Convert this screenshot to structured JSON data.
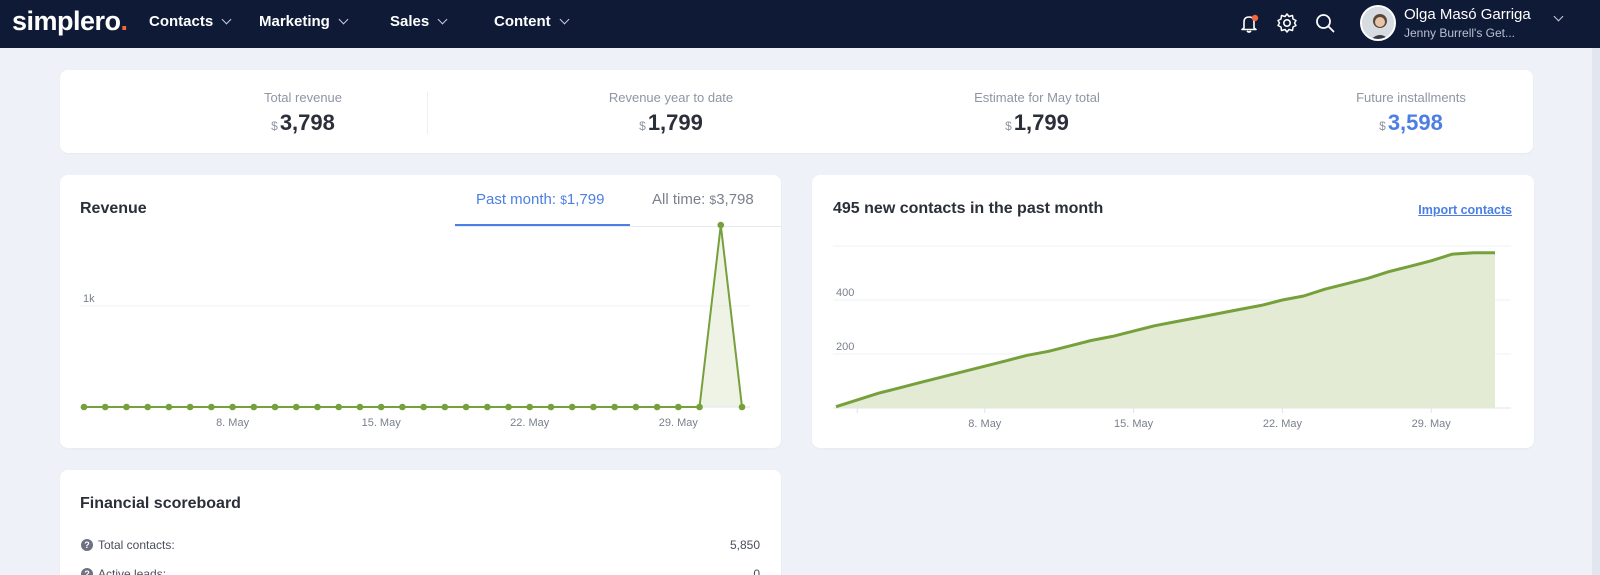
{
  "app": {
    "logo": "simplero",
    "logo_dot": "."
  },
  "nav": {
    "items": [
      {
        "label": "Contacts"
      },
      {
        "label": "Marketing"
      },
      {
        "label": "Sales"
      },
      {
        "label": "Content"
      }
    ]
  },
  "user": {
    "name": "Olga Masó Garriga",
    "account": "Jenny Burrell's Get..."
  },
  "icons": {
    "notifications": "bell-icon",
    "settings": "gear-icon",
    "search": "search-icon",
    "notification_badge_color": "#f4663b"
  },
  "stats": [
    {
      "label": "Total revenue",
      "currency": "$",
      "value": "3,798"
    },
    {
      "label": "Revenue year to date",
      "currency": "$",
      "value": "1,799"
    },
    {
      "label": "Estimate for May total",
      "currency": "$",
      "value": "1,799"
    },
    {
      "label": "Future installments",
      "currency": "$",
      "value": "3,598"
    }
  ],
  "revenue_card": {
    "title": "Revenue",
    "tab_past_prefix": "Past month: ",
    "tab_past_currency": "$",
    "tab_past_value": "1,799",
    "tab_all_prefix": "All time: ",
    "tab_all_currency": "$",
    "tab_all_value": "3,798",
    "active_tab": "past-month"
  },
  "contacts_card": {
    "title": "495 new contacts in the past month",
    "import_link": "Import contacts"
  },
  "scoreboard": {
    "title": "Financial scoreboard",
    "rows": [
      {
        "label": "Total contacts:",
        "value": "5,850"
      },
      {
        "label": "Active leads:",
        "value": "0"
      }
    ]
  },
  "colors": {
    "chart_green": "#76a03c",
    "chart_fill": "#e4ebd4",
    "accent_blue": "#4c7fe3",
    "nav_bg": "#0e1a36"
  },
  "chart_data": [
    {
      "type": "line",
      "x_tick_labels": [
        "8. May",
        "15. May",
        "22. May",
        "29. May"
      ],
      "y_tick_labels": [
        "1k"
      ],
      "ylim": [
        0,
        1800
      ],
      "series": [
        {
          "values": [
            0,
            0,
            0,
            0,
            0,
            0,
            0,
            0,
            0,
            0,
            0,
            0,
            0,
            0,
            0,
            0,
            0,
            0,
            0,
            0,
            0,
            0,
            0,
            0,
            0,
            0,
            0,
            0,
            0,
            0,
            1799,
            0
          ]
        }
      ],
      "grid": true
    },
    {
      "type": "area",
      "x_tick_labels": [
        "8. May",
        "15. May",
        "22. May",
        "29. May"
      ],
      "y_tick_labels": [
        "200",
        "400"
      ],
      "ylim": [
        0,
        600
      ],
      "series": [
        {
          "values": [
            5,
            30,
            55,
            75,
            95,
            115,
            135,
            155,
            175,
            195,
            210,
            230,
            250,
            265,
            285,
            305,
            320,
            335,
            350,
            365,
            380,
            400,
            415,
            440,
            460,
            480,
            505,
            525,
            545,
            570,
            575,
            575
          ]
        }
      ],
      "grid": true
    }
  ]
}
